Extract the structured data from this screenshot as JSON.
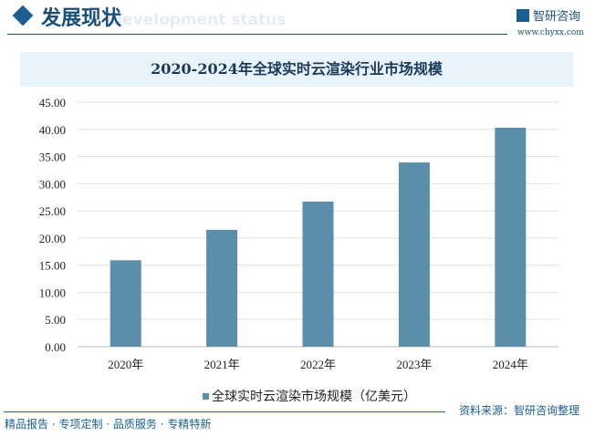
{
  "header": {
    "title": "发展现状",
    "subtitle_en": "Development status",
    "logo_text": "智研咨询",
    "logo_url": "www.chyxx.com"
  },
  "chart_data": {
    "type": "bar",
    "title": "2020-2024年全球实时云渲染行业市场规模",
    "categories": [
      "2020年",
      "2021年",
      "2022年",
      "2023年",
      "2024年"
    ],
    "series": [
      {
        "name": "全球实时云渲染市场规模（亿美元）",
        "values": [
          15.9,
          21.5,
          26.7,
          33.9,
          40.3
        ]
      }
    ],
    "ylim": [
      0,
      45
    ],
    "yticks": [
      "0.00",
      "5.00",
      "10.00",
      "15.00",
      "20.00",
      "25.00",
      "30.00",
      "35.00",
      "40.00",
      "45.00"
    ],
    "grid": true,
    "legend": "bottom",
    "bar_color": "#5b8ea8"
  },
  "footer": {
    "left": "精品报告 · 专项定制 · 品质服务 · 专精特新",
    "source": "资料来源：智研咨询整理"
  }
}
